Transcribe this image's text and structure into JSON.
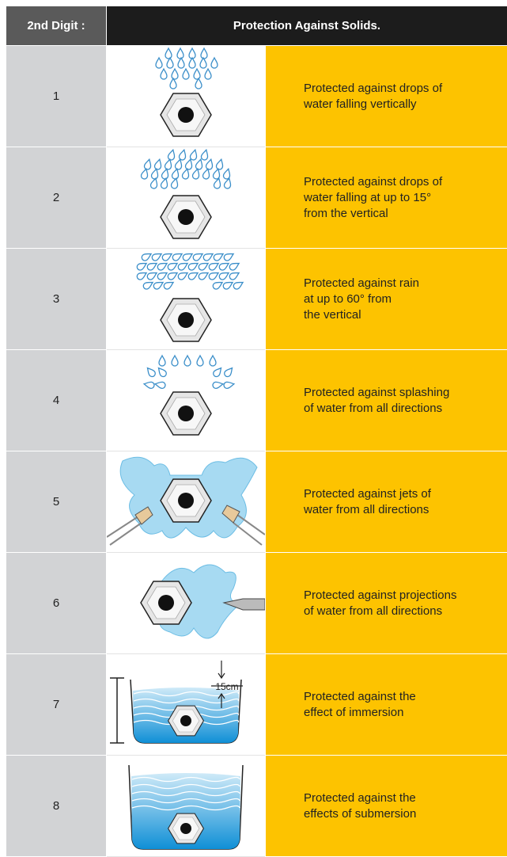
{
  "table": {
    "header": [
      "2nd Digit :",
      "Protection Against Solids."
    ],
    "rows": [
      {
        "digit": "1",
        "description": [
          "Protected against drops of",
          "water falling vertically"
        ]
      },
      {
        "digit": "2",
        "description": [
          "Protected against drops of",
          "water falling at up to 15°",
          "from the vertical"
        ]
      },
      {
        "digit": "3",
        "description": [
          "Protected against rain",
          "at up to 60° from",
          "the vertical"
        ]
      },
      {
        "digit": "4",
        "description": [
          "Protected against splashing",
          "of water from all directions"
        ]
      },
      {
        "digit": "5",
        "description": [
          "Protected against jets of",
          "water from all directions"
        ]
      },
      {
        "digit": "6",
        "description": [
          "Protected against projections",
          "of water from all directions"
        ]
      },
      {
        "digit": "7",
        "description": [
          "Protected against the",
          "effect of immersion"
        ],
        "illustration_label": "15cm"
      },
      {
        "digit": "8",
        "description": [
          "Protected against the",
          "effects of submersion"
        ]
      }
    ]
  }
}
